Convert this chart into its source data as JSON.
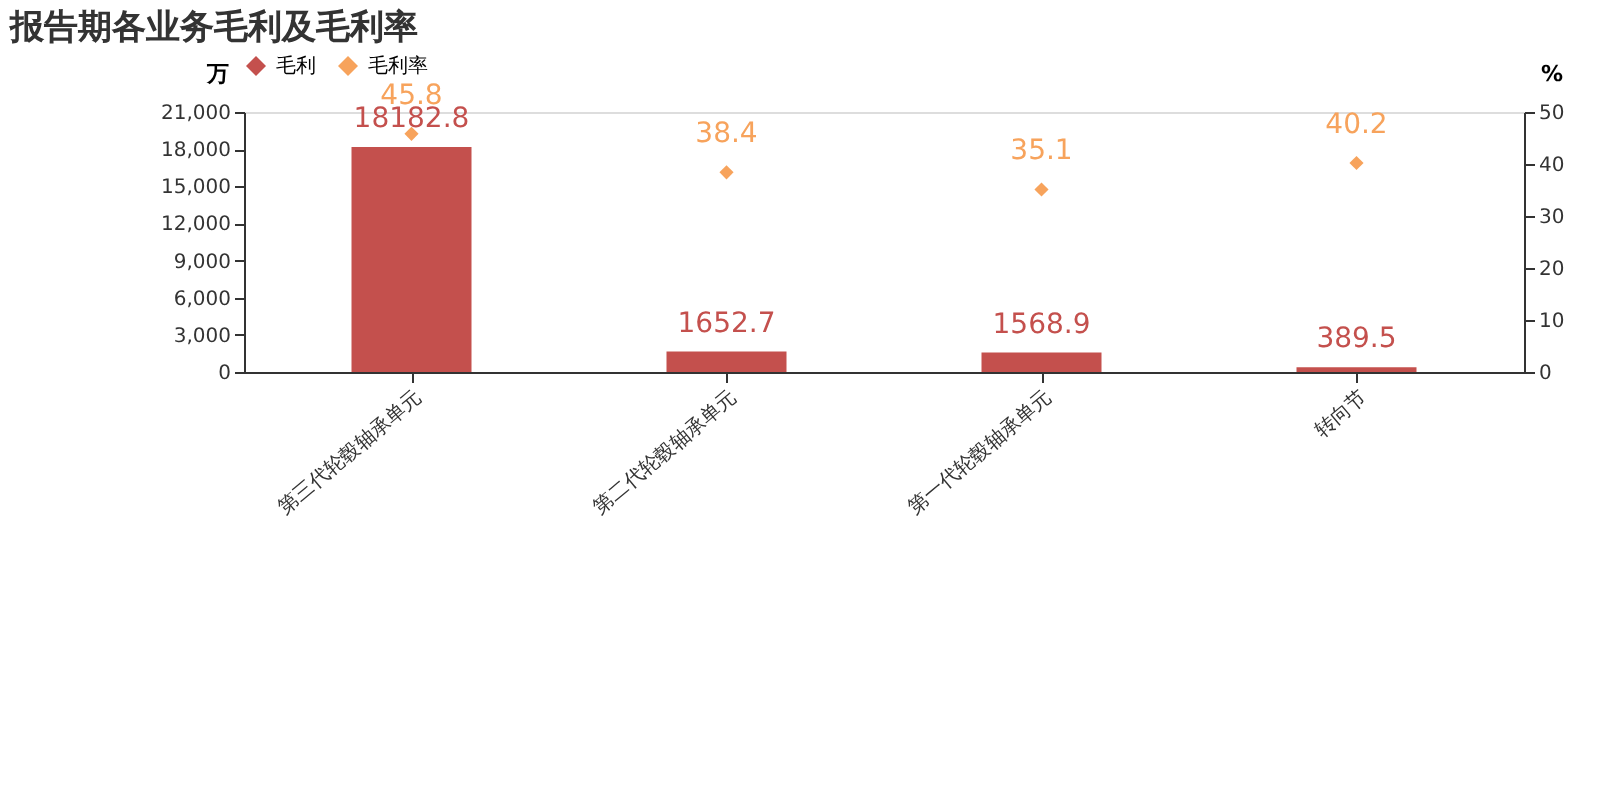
{
  "chart_data": {
    "type": "bar",
    "title": "报告期各业务毛利及毛利率",
    "categories": [
      "第三代轮毂轴承单元",
      "第二代轮毂轴承单元",
      "第一代轮毂轴承单元",
      "转向节"
    ],
    "ylabel": "万",
    "y2label": "%",
    "series": [
      {
        "name": "毛利",
        "color": "#c4504d",
        "values": [
          18182.8,
          1652.7,
          1568.9,
          389.5
        ]
      },
      {
        "name": "毛利率",
        "type": "scatter",
        "axis": "y2",
        "marker": "diamond",
        "color": "#f7a35c",
        "values": [
          45.8,
          38.4,
          35.1,
          40.2
        ]
      }
    ],
    "ylim": [
      0,
      21000
    ],
    "yticks": [
      0,
      {
        "value": 3000,
        "label": "3,000"
      },
      {
        "value": 6000,
        "label": "6,000"
      },
      {
        "value": 9000,
        "label": "9,000"
      },
      {
        "value": 12000,
        "label": "12,000"
      },
      {
        "value": 15000,
        "label": "15,000"
      },
      {
        "value": 18000,
        "label": "18,000"
      },
      {
        "value": 21000,
        "label": "21,000"
      }
    ],
    "y2lim": [
      0,
      50
    ],
    "y2ticks": [
      0,
      10,
      20,
      30,
      40,
      50
    ],
    "data_labels": true,
    "legend": "top",
    "grid": false
  }
}
